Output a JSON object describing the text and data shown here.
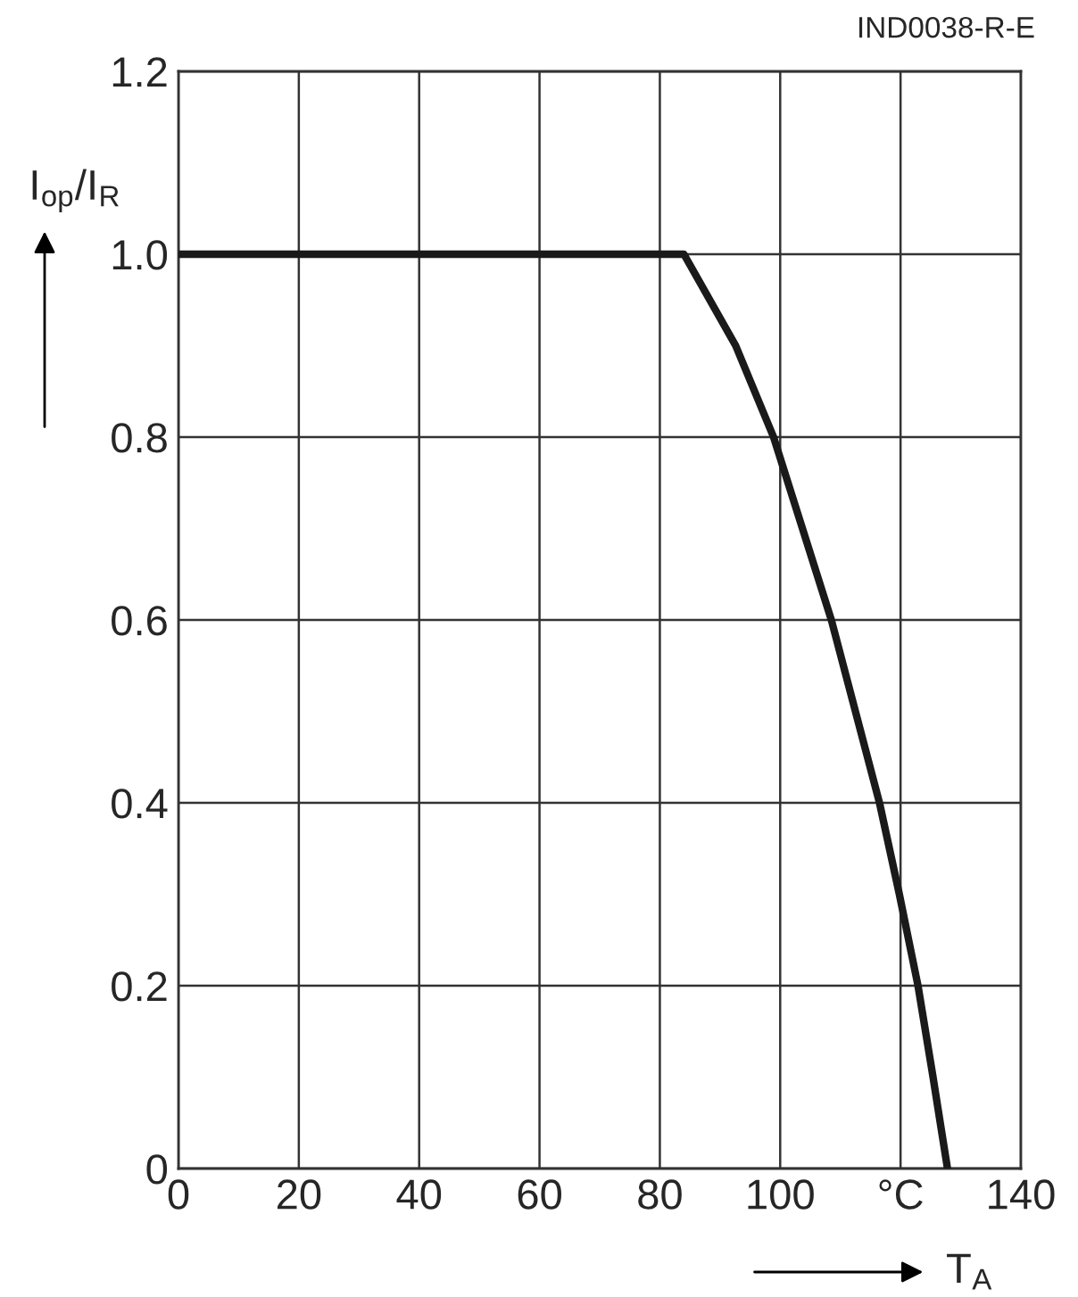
{
  "chart_data": {
    "type": "line",
    "xlabel": "T$_{A}$",
    "ylabel": "I$_{op}$/I$_{R}$",
    "annotations": [
      "IND0038-R-E"
    ],
    "series": [
      {
        "color": "#1a1a1a",
        "x": [
          0,
          84,
          92.6,
          98.9,
          108.5,
          116.5,
          119.8,
          122.9,
          125.4,
          127.8
        ],
        "values": [
          1.0,
          1.0,
          0.9,
          0.8,
          0.6,
          0.4,
          0.3,
          0.2,
          0.1,
          0
        ]
      }
    ],
    "xlim": [
      0,
      140
    ],
    "ylim": [
      0,
      1.2
    ],
    "xticks": [
      0,
      20,
      40,
      60,
      80,
      100,
      {
        "value": 120,
        "label": "°C"
      },
      140
    ],
    "yticks": [
      0,
      {
        "value": 0.2,
        "label": "0.2"
      },
      {
        "value": 0.4,
        "label": "0.4"
      },
      {
        "value": 0.6,
        "label": "0.6"
      },
      {
        "value": 0.8,
        "label": "0.8"
      },
      {
        "value": 1.0,
        "label": "1.0"
      },
      {
        "value": 1.2,
        "label": "1.2"
      }
    ],
    "grid": true,
    "line_style": "solid",
    "marker": "none"
  }
}
